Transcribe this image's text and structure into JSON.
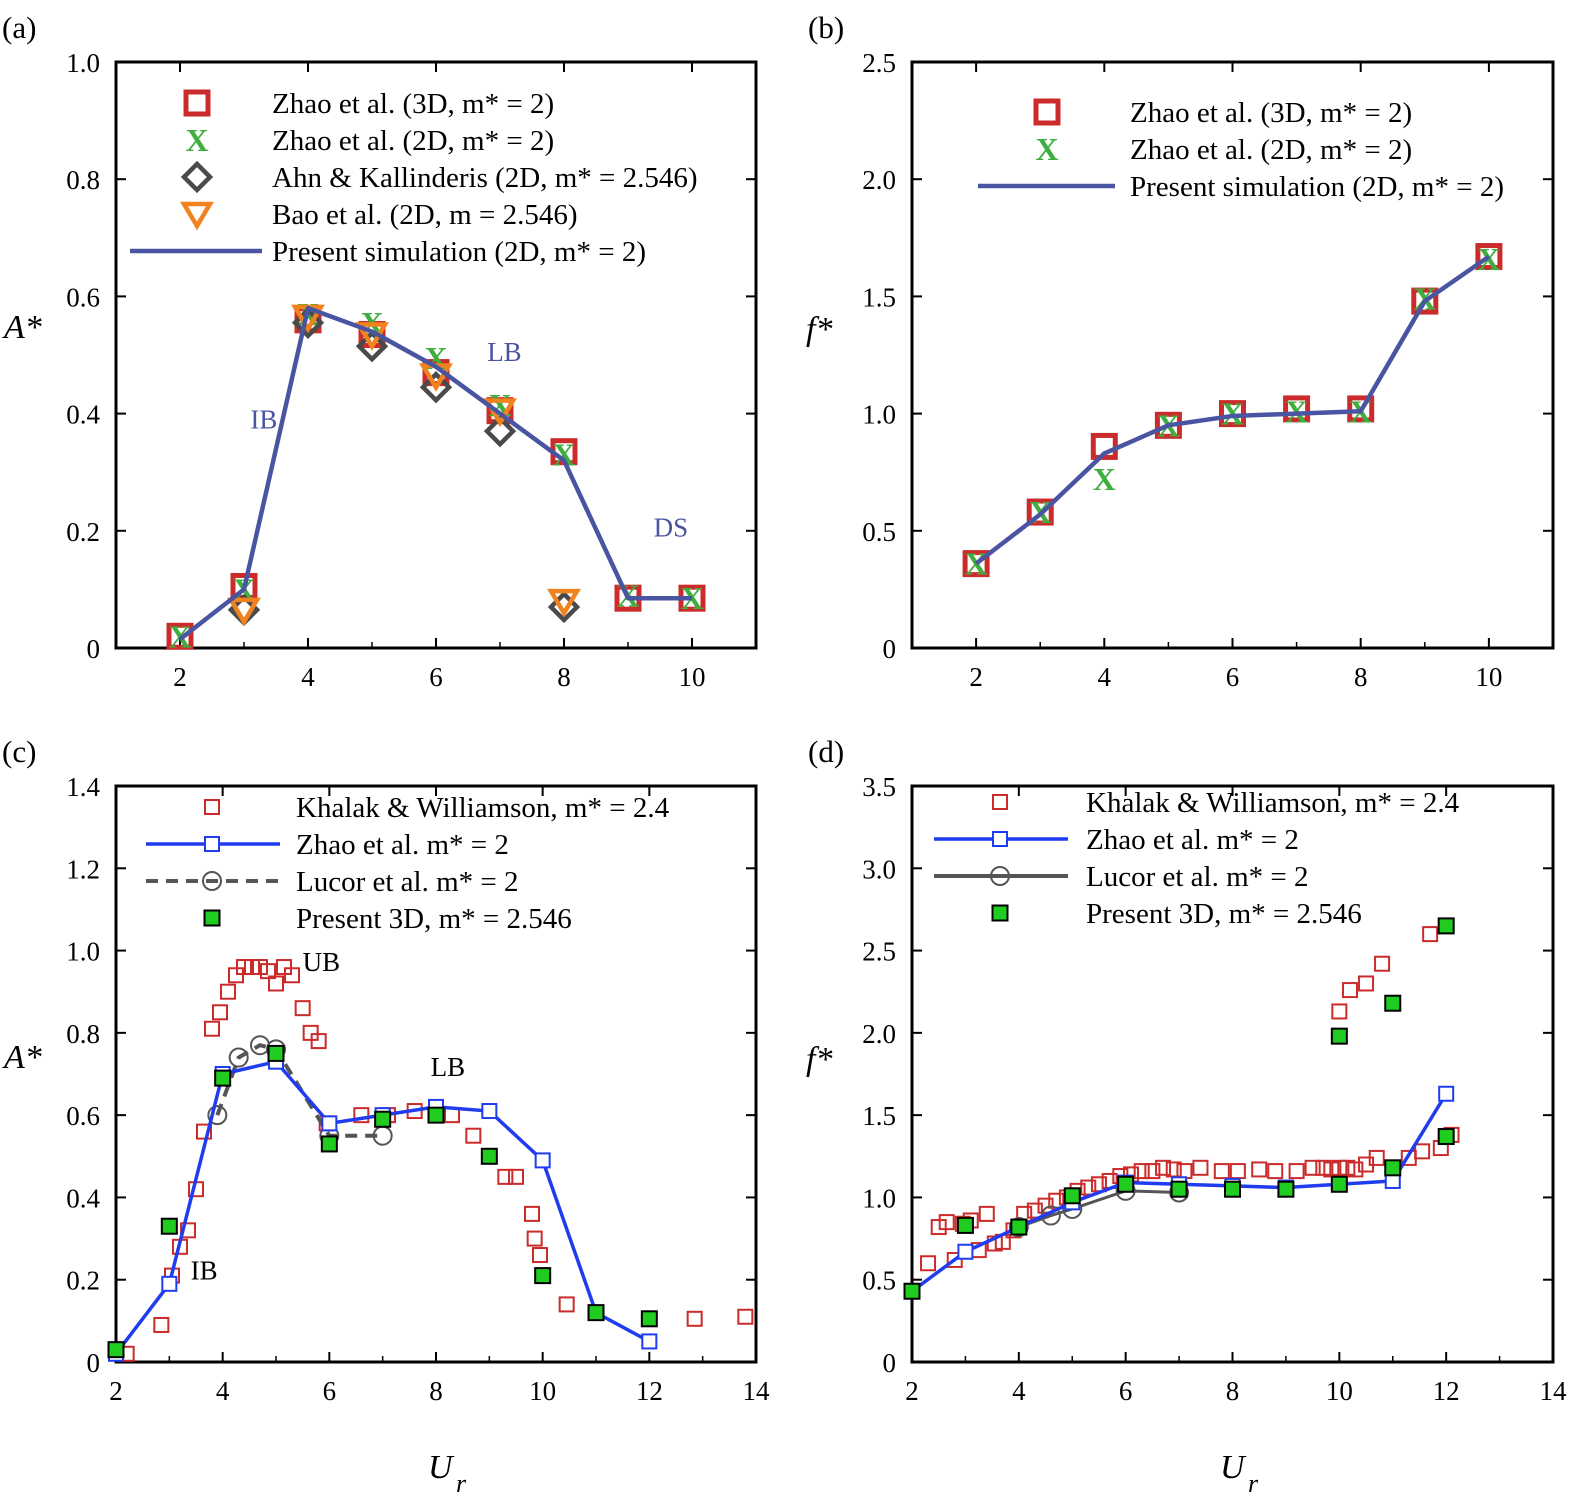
{
  "colors": {
    "red": "#cc2b2b",
    "green": "#3fae3f",
    "gray": "#4a4a4a",
    "orange": "#f0831e",
    "navy": "#4a55a2",
    "blue": "#1f3cf0",
    "darkgray": "#555555",
    "fillgreen": "#1fcc1f"
  },
  "chart_data": [
    {
      "panel": "(a)",
      "type": "line",
      "ylabel": "A*",
      "xlim": [
        1,
        11
      ],
      "ylim": [
        0,
        1.0
      ],
      "xticks": [
        2,
        4,
        6,
        8,
        10
      ],
      "yticks": [
        0,
        0.2,
        0.4,
        0.6,
        0.8,
        1.0
      ],
      "ytick_labels": [
        "0",
        "0.2",
        "0.4",
        "0.6",
        "0.8",
        "1.0"
      ],
      "legend": [
        {
          "label": "Zhao et al. (3D, m* = 2)",
          "marker": "square"
        },
        {
          "label": "Zhao et al. (2D, m* = 2)",
          "marker": "x"
        },
        {
          "label": "Ahn & Kallinderis (2D, m* = 2.546)",
          "marker": "diamond"
        },
        {
          "label": "Bao et al. (2D, m = 2.546)",
          "marker": "triangle-down"
        },
        {
          "label": "Present simulation (2D, m* = 2)",
          "marker": "line"
        }
      ],
      "series": [
        {
          "name": "Zhao et al. (3D, m* = 2)",
          "marker": "square",
          "x": [
            2,
            3,
            4,
            5,
            6,
            7,
            8,
            9,
            10
          ],
          "y": [
            0.02,
            0.105,
            0.56,
            0.535,
            0.47,
            0.405,
            0.335,
            0.085,
            0.085
          ]
        },
        {
          "name": "Zhao et al. (2D, m* = 2)",
          "marker": "x",
          "x": [
            2,
            3,
            4,
            5,
            6,
            7,
            8,
            9,
            10
          ],
          "y": [
            0.02,
            0.1,
            0.57,
            0.555,
            0.495,
            0.415,
            0.33,
            0.09,
            0.085
          ]
        },
        {
          "name": "Ahn & Kallinderis (2D, m* = 2.546)",
          "marker": "diamond",
          "x": [
            3,
            4,
            5,
            6,
            7,
            8
          ],
          "y": [
            0.065,
            0.555,
            0.515,
            0.445,
            0.37,
            0.07
          ]
        },
        {
          "name": "Bao et al. (2D, m = 2.546)",
          "marker": "triangle-down",
          "x": [
            3,
            4,
            5,
            6,
            7,
            8
          ],
          "y": [
            0.065,
            0.565,
            0.535,
            0.465,
            0.405,
            0.08
          ]
        },
        {
          "name": "Present simulation (2D, m* = 2)",
          "marker": "line",
          "x": [
            2,
            3,
            4,
            5,
            6,
            7,
            8,
            9,
            10
          ],
          "y": [
            0.015,
            0.1,
            0.58,
            0.54,
            0.48,
            0.4,
            0.32,
            0.085,
            0.085
          ]
        }
      ],
      "annotations": [
        {
          "text": "IB",
          "x": 3.1,
          "y": 0.375
        },
        {
          "text": "LB",
          "x": 6.8,
          "y": 0.49
        },
        {
          "text": "DS",
          "x": 9.4,
          "y": 0.19
        }
      ]
    },
    {
      "panel": "(b)",
      "type": "line",
      "ylabel": "f*",
      "xlim": [
        1,
        11
      ],
      "ylim": [
        0,
        2.5
      ],
      "xticks": [
        2,
        4,
        6,
        8,
        10
      ],
      "yticks": [
        0,
        0.5,
        1.0,
        1.5,
        2.0,
        2.5
      ],
      "ytick_labels": [
        "0",
        "0.5",
        "1.0",
        "1.5",
        "2.0",
        "2.5"
      ],
      "legend": [
        {
          "label": "Zhao et al. (3D, m* = 2)",
          "marker": "square"
        },
        {
          "label": "Zhao et al. (2D, m* = 2)",
          "marker": "x"
        },
        {
          "label": "Present simulation (2D, m* = 2)",
          "marker": "line"
        }
      ],
      "series": [
        {
          "name": "Zhao et al. (3D, m* = 2)",
          "marker": "square",
          "x": [
            2,
            3,
            4,
            5,
            6,
            7,
            8,
            9,
            10
          ],
          "y": [
            0.36,
            0.58,
            0.86,
            0.95,
            1.0,
            1.02,
            1.02,
            1.48,
            1.67
          ]
        },
        {
          "name": "Zhao et al. (2D, m* = 2)",
          "marker": "x",
          "x": [
            2,
            3,
            4,
            5,
            6,
            7,
            8,
            9,
            10
          ],
          "y": [
            0.36,
            0.58,
            0.72,
            0.95,
            1.0,
            1.01,
            1.01,
            1.49,
            1.66
          ]
        },
        {
          "name": "Present simulation (2D, m* = 2)",
          "marker": "line",
          "x": [
            2,
            3,
            4,
            5,
            6,
            7,
            8,
            9,
            10
          ],
          "y": [
            0.36,
            0.57,
            0.83,
            0.95,
            0.99,
            1.0,
            1.01,
            1.48,
            1.67
          ]
        }
      ]
    },
    {
      "panel": "(c)",
      "type": "scatter",
      "ylabel": "A*",
      "xlabel": "U_r",
      "xlim": [
        2,
        14
      ],
      "ylim": [
        0,
        1.4
      ],
      "xticks": [
        2,
        4,
        6,
        8,
        10,
        12,
        14
      ],
      "yticks": [
        0,
        0.2,
        0.4,
        0.6,
        0.8,
        1.0,
        1.2,
        1.4
      ],
      "ytick_labels": [
        "0",
        "0.2",
        "0.4",
        "0.6",
        "0.8",
        "1.0",
        "1.2",
        "1.4"
      ],
      "legend": [
        {
          "label": "Khalak & Williamson, m* = 2.4",
          "marker": "square-open-red"
        },
        {
          "label": "Zhao et al. m* = 2",
          "marker": "line-square-blue"
        },
        {
          "label": "Lucor et al. m* = 2",
          "marker": "dashed-circle-gray"
        },
        {
          "label": "Present 3D, m* = 2.546",
          "marker": "square-filled-green"
        }
      ],
      "series": [
        {
          "name": "Khalak & Williamson, m* = 2.4",
          "x": [
            2.2,
            2.85,
            3.05,
            3.2,
            3.35,
            3.5,
            3.65,
            3.8,
            3.95,
            4.1,
            4.25,
            4.4,
            4.55,
            4.7,
            4.85,
            5.0,
            5.15,
            5.3,
            5.5,
            5.65,
            5.8,
            5.95,
            6.6,
            7.1,
            7.6,
            8.3,
            8.7,
            9.0,
            9.3,
            9.5,
            9.8,
            9.85,
            9.95,
            10.45,
            12.0,
            12.85,
            13.8
          ],
          "y": [
            0.02,
            0.09,
            0.21,
            0.28,
            0.32,
            0.42,
            0.56,
            0.81,
            0.85,
            0.9,
            0.94,
            0.96,
            0.96,
            0.96,
            0.95,
            0.92,
            0.96,
            0.94,
            0.86,
            0.8,
            0.78,
            0.58,
            0.6,
            0.6,
            0.61,
            0.6,
            0.55,
            0.5,
            0.45,
            0.45,
            0.36,
            0.3,
            0.26,
            0.14,
            0.105,
            0.105,
            0.11
          ]
        },
        {
          "name": "Zhao et al. m* = 2",
          "x": [
            2,
            3,
            4,
            5,
            6,
            7,
            8,
            9,
            10,
            11,
            12
          ],
          "y": [
            0.02,
            0.19,
            0.7,
            0.73,
            0.58,
            0.6,
            0.62,
            0.61,
            0.49,
            0.12,
            0.05
          ]
        },
        {
          "name": "Lucor et al. m* = 2",
          "x": [
            3.9,
            4.3,
            4.7,
            5.0,
            6.0,
            7.0
          ],
          "y": [
            0.6,
            0.74,
            0.77,
            0.76,
            0.55,
            0.55
          ]
        },
        {
          "name": "Present 3D, m* = 2.546",
          "x": [
            2,
            3,
            4,
            5,
            6,
            7,
            8,
            9,
            10,
            11,
            12
          ],
          "y": [
            0.03,
            0.33,
            0.69,
            0.75,
            0.53,
            0.59,
            0.6,
            0.5,
            0.21,
            0.12,
            0.105
          ]
        }
      ],
      "annotations": [
        {
          "text": "UB",
          "x": 5.5,
          "y": 0.95
        },
        {
          "text": "LB",
          "x": 7.9,
          "y": 0.695
        },
        {
          "text": "IB",
          "x": 3.4,
          "y": 0.2
        }
      ]
    },
    {
      "panel": "(d)",
      "type": "scatter",
      "ylabel": "f*",
      "xlabel": "U_r",
      "xlim": [
        2,
        14
      ],
      "ylim": [
        0,
        3.5
      ],
      "xticks": [
        2,
        4,
        6,
        8,
        10,
        12,
        14
      ],
      "yticks": [
        0,
        0.5,
        1.0,
        1.5,
        2.0,
        2.5,
        3.0,
        3.5
      ],
      "ytick_labels": [
        "0",
        "0.5",
        "1.0",
        "1.5",
        "2.0",
        "2.5",
        "3.0",
        "3.5"
      ],
      "legend": [
        {
          "label": "Khalak & Williamson, m* = 2.4",
          "marker": "square-open-red"
        },
        {
          "label": "Zhao et al. m* = 2",
          "marker": "line-square-blue"
        },
        {
          "label": "Lucor et al. m* = 2",
          "marker": "line-circle-gray"
        },
        {
          "label": "Present 3D, m* = 2.546",
          "marker": "square-filled-green"
        }
      ],
      "series": [
        {
          "name": "Khalak & Williamson, m* = 2.4",
          "x": [
            2.3,
            2.5,
            2.65,
            2.8,
            2.95,
            3.1,
            3.25,
            3.4,
            3.55,
            3.7,
            3.9,
            4.1,
            4.3,
            4.5,
            4.7,
            4.9,
            5.1,
            5.3,
            5.5,
            5.7,
            5.9,
            6.1,
            6.3,
            6.5,
            6.7,
            6.9,
            7.1,
            7.4,
            7.8,
            8.1,
            8.5,
            8.8,
            9.2,
            9.5,
            9.7,
            9.85,
            10.0,
            10.15,
            10.3,
            10.5,
            10.7,
            11.0,
            11.3,
            11.55,
            11.9,
            12.1,
            10.0,
            10.2,
            10.5,
            10.8,
            11.7
          ],
          "y": [
            0.6,
            0.82,
            0.85,
            0.62,
            0.84,
            0.86,
            0.68,
            0.9,
            0.72,
            0.73,
            0.8,
            0.9,
            0.92,
            0.95,
            0.98,
            1.0,
            1.04,
            1.06,
            1.08,
            1.1,
            1.13,
            1.14,
            1.16,
            1.16,
            1.18,
            1.17,
            1.16,
            1.18,
            1.16,
            1.16,
            1.17,
            1.16,
            1.16,
            1.18,
            1.18,
            1.17,
            1.18,
            1.18,
            1.17,
            1.2,
            1.24,
            1.17,
            1.24,
            1.28,
            1.3,
            1.38,
            2.13,
            2.26,
            2.3,
            2.42,
            2.6
          ]
        },
        {
          "name": "Zhao et al. m* = 2",
          "x": [
            2,
            3,
            4,
            5,
            6,
            7,
            8,
            9,
            10,
            11,
            12
          ],
          "y": [
            0.43,
            0.67,
            0.82,
            0.97,
            1.09,
            1.08,
            1.07,
            1.06,
            1.08,
            1.1,
            1.63
          ]
        },
        {
          "name": "Lucor et al. m* = 2",
          "x": [
            4.0,
            4.6,
            5.0,
            6.0,
            7.0
          ],
          "y": [
            0.82,
            0.89,
            0.93,
            1.04,
            1.03
          ]
        },
        {
          "name": "Present 3D, m* = 2.546",
          "x": [
            2,
            3,
            4,
            5,
            6,
            7,
            8,
            9,
            10,
            11,
            12,
            10,
            11,
            12
          ],
          "y": [
            0.43,
            0.83,
            0.82,
            1.01,
            1.08,
            1.05,
            1.05,
            1.05,
            1.08,
            1.18,
            1.37,
            1.98,
            2.18,
            2.65
          ]
        }
      ]
    }
  ],
  "labels": {
    "panel_a": "(a)",
    "panel_b": "(b)",
    "panel_c": "(c)",
    "panel_d": "(d)",
    "ylabel_a": "A*",
    "ylabel_b": "f*",
    "ylabel_c": "A*",
    "ylabel_d": "f*",
    "xlabel_c": "U",
    "xlabel_d": "U",
    "xlabel_sub": "r"
  }
}
